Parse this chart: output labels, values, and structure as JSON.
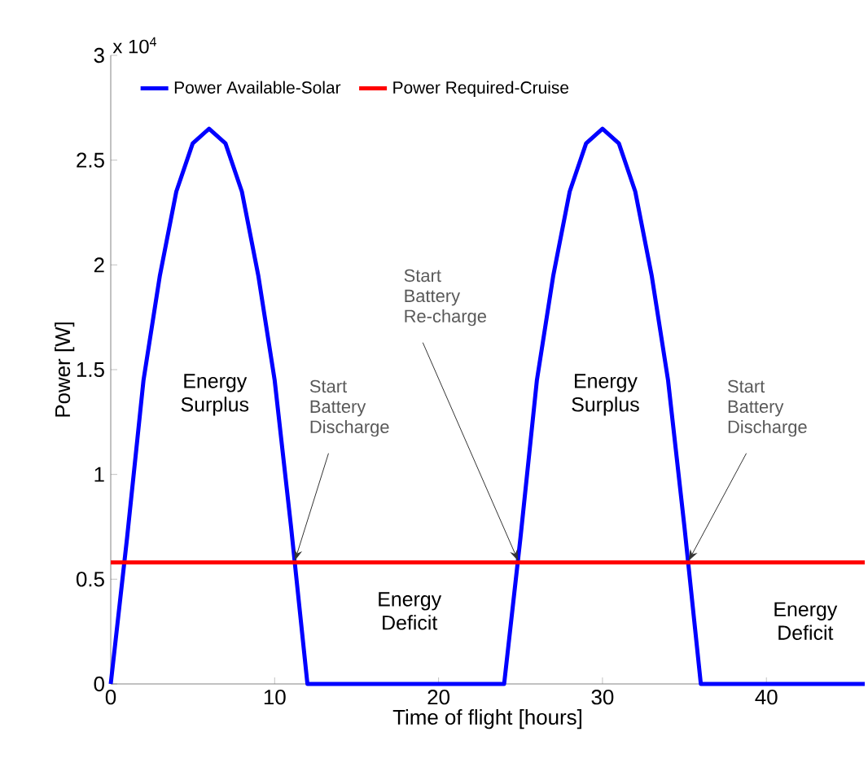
{
  "chart_data": {
    "type": "line",
    "xlabel": "Time of flight [hours]",
    "ylabel": "Power [W]",
    "xlim": [
      0,
      46
    ],
    "ylim": [
      0,
      3
    ],
    "xticks": [
      0,
      10,
      20,
      30,
      40
    ],
    "yticks": [
      0,
      0.5,
      1,
      1.5,
      2,
      2.5,
      3
    ],
    "legend": "top",
    "grid": false,
    "marker": "none",
    "line_style": "solid",
    "series": [
      {
        "name": "Power Available-Solar",
        "color": "#0000ff",
        "x": [
          0,
          1,
          2,
          3,
          4,
          5,
          6,
          7,
          8,
          9,
          10,
          11,
          12,
          24,
          25,
          26,
          27,
          28,
          29,
          30,
          31,
          32,
          33,
          34,
          35,
          36,
          46
        ],
        "values": [
          0,
          0.7,
          1.45,
          1.95,
          2.35,
          2.58,
          2.65,
          2.58,
          2.35,
          1.95,
          1.45,
          0.75,
          0,
          0,
          0.7,
          1.45,
          1.95,
          2.35,
          2.58,
          2.65,
          2.58,
          2.35,
          1.95,
          1.45,
          0.75,
          0,
          0
        ]
      },
      {
        "name": "Power Required-Cruise",
        "color": "#ff0000",
        "x": [
          0,
          46
        ],
        "values": [
          0.58,
          0.58
        ]
      }
    ],
    "annotations": [
      "x 10$^{4}$",
      "Energy Surplus",
      "Energy Surplus",
      "Energy Deficit",
      "Energy Deficit",
      {
        "text": "Start Battery Discharge",
        "x": 11.2,
        "y": 0.58
      },
      {
        "text": "Start Battery Re-charge",
        "x": 24.9,
        "y": 0.58
      },
      {
        "text": "Start Battery Discharge",
        "x": 35.2,
        "y": 0.58
      }
    ]
  }
}
